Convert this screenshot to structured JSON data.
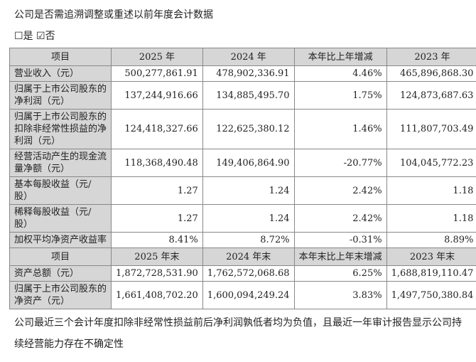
{
  "title": "公司是否需追溯调整或重述以前年度会计数据",
  "options": {
    "yes": "☐是",
    "no": "☑否"
  },
  "header1": [
    "项目",
    "2025 年",
    "2024 年",
    "本年比上年增减",
    "2023 年"
  ],
  "rows1": [
    {
      "label": "营业收入（元）",
      "v": [
        "500,277,861.91",
        "478,902,336.91",
        "4.46%",
        "465,896,868.30"
      ]
    },
    {
      "label": "归属于上市公司股东的\n净利润（元）",
      "v": [
        "137,244,916.66",
        "134,885,495.70",
        "1.75%",
        "124,873,687.63"
      ]
    },
    {
      "label": "归属于上市公司股东的\n扣除非经常性损益的净\n利润（元）",
      "v": [
        "124,418,327.66",
        "122,625,380.12",
        "1.46%",
        "111,807,703.49"
      ]
    },
    {
      "label": "经营活动产生的现金流\n量净额（元）",
      "v": [
        "118,368,490.48",
        "149,406,864.90",
        "-20.77%",
        "104,045,772.23"
      ]
    },
    {
      "label": "基本每股收益（元/\n股）",
      "v": [
        "1.27",
        "1.24",
        "2.42%",
        "1.18"
      ]
    },
    {
      "label": "稀释每股收益（元/\n股）",
      "v": [
        "1.27",
        "1.24",
        "2.42%",
        "1.18"
      ]
    },
    {
      "label": "加权平均净资产收益率",
      "v": [
        "8.41%",
        "8.72%",
        "-0.31%",
        "8.89%"
      ]
    }
  ],
  "header2": [
    "项目",
    "2025 年末",
    "2024 年末",
    "本年末比上年末增减",
    "2023 年末"
  ],
  "rows2": [
    {
      "label": "资产总额（元）",
      "v": [
        "1,872,728,531.90",
        "1,762,572,068.68",
        "6.25%",
        "1,688,819,110.47"
      ]
    },
    {
      "label": "归属于上市公司股东的\n净资产（元）",
      "v": [
        "1,661,408,702.20",
        "1,600,094,249.24",
        "3.83%",
        "1,497,750,380.84"
      ]
    }
  ],
  "note": "公司最近三个会计年度扣除非经常性损益前后净利润孰低者均为负值，且最近一年审计报告显示公司持续经营能力存在不确定性"
}
